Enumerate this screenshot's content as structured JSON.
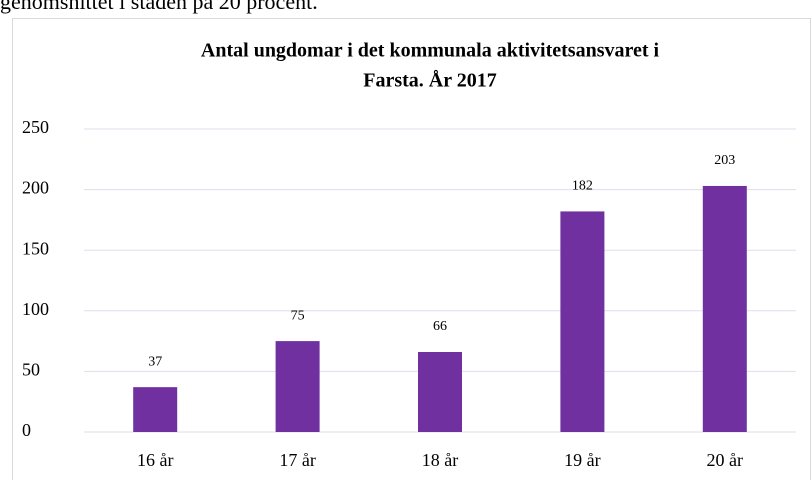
{
  "document_text": "genomsnittet i staden på 20 procent.",
  "chart_data": {
    "type": "bar",
    "title": [
      "Antal ungdomar i det kommunala aktivitetsansvaret i",
      "Farsta. År 2017"
    ],
    "categories": [
      "16 år",
      "17 år",
      "18 år",
      "19 år",
      "20 år"
    ],
    "values": [
      37,
      75,
      66,
      182,
      203
    ],
    "color": "#7030a0",
    "ylim": [
      0,
      250
    ],
    "yticks": [
      0,
      50,
      100,
      150,
      200,
      250
    ],
    "grid": true
  }
}
